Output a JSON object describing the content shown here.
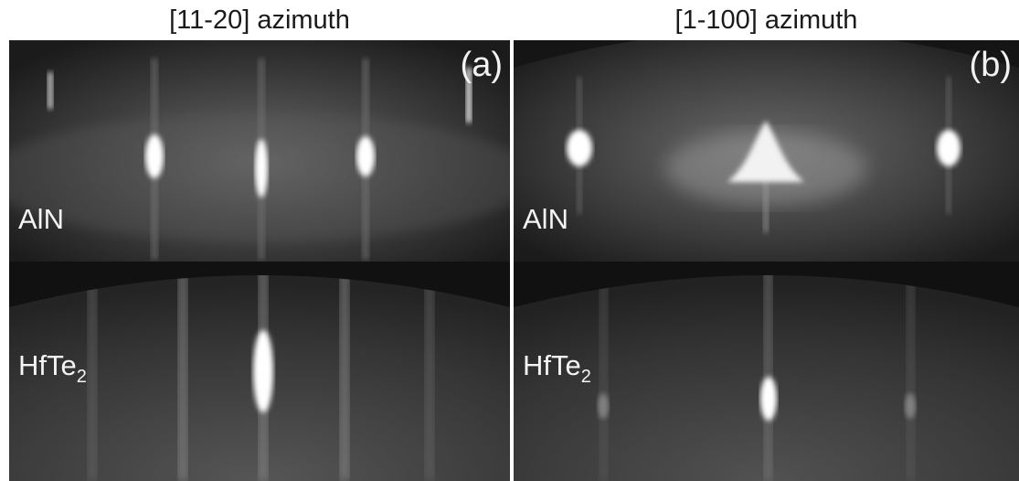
{
  "columns": [
    {
      "title": "[11-20] azimuth",
      "panel_letter": "(a)"
    },
    {
      "title": "[1-100] azimuth",
      "panel_letter": "(b)"
    }
  ],
  "materials": {
    "top": "AlN",
    "bottom_main": "HfTe",
    "bottom_sub": "2"
  },
  "colors": {
    "background": "#ffffff",
    "panel_dark": "#1e1e1e",
    "streak": "#ffffff"
  }
}
